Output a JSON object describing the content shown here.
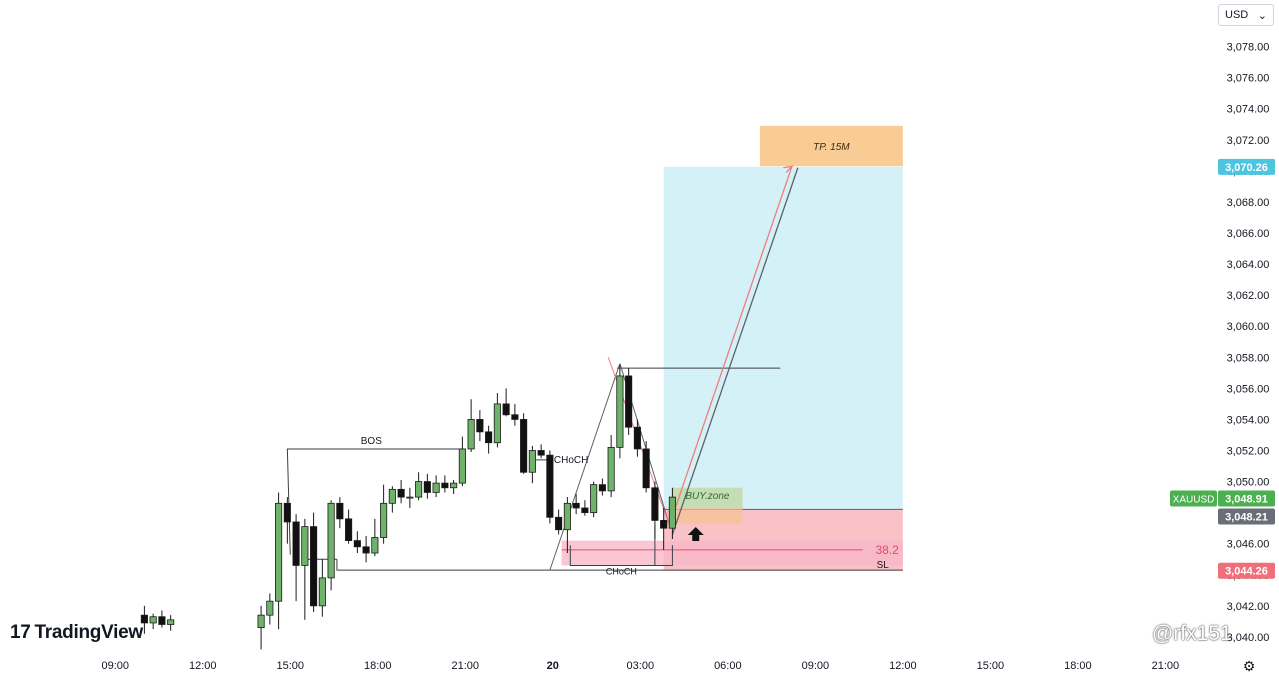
{
  "currency": {
    "label": "USD",
    "chevron_icon": "chevron-down-icon"
  },
  "brand": {
    "logo_mark": "17",
    "name": "TradingView"
  },
  "watermark": "@rfx151",
  "settings_icon": "gear-icon",
  "chart_data": {
    "type": "candlestick",
    "symbol": "XAUUSD",
    "y_axis": {
      "ticks": [
        "3,042.00",
        "3,044.00",
        "3,046.00",
        "3,048.00",
        "3,050.00",
        "3,052.00",
        "3,054.00",
        "3,056.00",
        "3,058.00",
        "3,060.00",
        "3,062.00",
        "3,064.00",
        "3,066.00",
        "3,068.00",
        "3,070.00",
        "3,072.00",
        "3,074.00",
        "3,076.00",
        "3,078.00",
        "3,040.00"
      ],
      "tick_values": [
        3042,
        3044,
        3046,
        3048,
        3050,
        3052,
        3054,
        3056,
        3058,
        3060,
        3062,
        3064,
        3066,
        3068,
        3070,
        3072,
        3074,
        3076,
        3078,
        3040
      ],
      "range": [
        3038.9,
        3081.0
      ]
    },
    "x_axis": {
      "ticks": [
        "09:00",
        "12:00",
        "15:00",
        "18:00",
        "21:00",
        "20",
        "03:00",
        "06:00",
        "09:00",
        "12:00",
        "15:00",
        "18:00",
        "21:00"
      ],
      "tick_hours": [
        9,
        12,
        15,
        18,
        21,
        24,
        27,
        30,
        33,
        36,
        39,
        42,
        45
      ],
      "range_hours": [
        5.05,
        46.7
      ]
    },
    "price_tags": {
      "target": {
        "value": "3,070.26",
        "color": "#4cc6e0"
      },
      "symbol": {
        "name": "XAUUSD",
        "value": "3,048.91",
        "color": "#4caf50"
      },
      "entry": {
        "value": "3,048.21",
        "color": "#6b6e78"
      },
      "stop": {
        "value": "3,044.26",
        "color": "#ef6f7a"
      }
    },
    "candles": [
      {
        "t": 10.0,
        "o": 3041.4,
        "h": 3042.0,
        "l": 3040.2,
        "c": 3040.9
      },
      {
        "t": 10.3,
        "o": 3040.9,
        "h": 3041.5,
        "l": 3040.5,
        "c": 3041.3
      },
      {
        "t": 10.6,
        "o": 3041.3,
        "h": 3041.7,
        "l": 3040.6,
        "c": 3040.8
      },
      {
        "t": 10.9,
        "o": 3040.8,
        "h": 3041.4,
        "l": 3040.4,
        "c": 3041.1
      },
      {
        "t": 14.0,
        "o": 3040.6,
        "h": 3042.0,
        "l": 3039.2,
        "c": 3041.4
      },
      {
        "t": 14.3,
        "o": 3041.4,
        "h": 3042.8,
        "l": 3040.8,
        "c": 3042.3
      },
      {
        "t": 14.6,
        "o": 3042.3,
        "h": 3049.3,
        "l": 3040.5,
        "c": 3048.6
      },
      {
        "t": 14.9,
        "o": 3048.6,
        "h": 3049.0,
        "l": 3046.0,
        "c": 3047.4
      },
      {
        "t": 15.2,
        "o": 3047.4,
        "h": 3047.9,
        "l": 3042.3,
        "c": 3044.6
      },
      {
        "t": 15.5,
        "o": 3044.6,
        "h": 3047.6,
        "l": 3041.1,
        "c": 3047.1
      },
      {
        "t": 15.8,
        "o": 3047.1,
        "h": 3048.0,
        "l": 3041.6,
        "c": 3042.0
      },
      {
        "t": 16.1,
        "o": 3042.0,
        "h": 3045.0,
        "l": 3041.3,
        "c": 3043.8
      },
      {
        "t": 16.4,
        "o": 3043.8,
        "h": 3048.8,
        "l": 3043.0,
        "c": 3048.6
      },
      {
        "t": 16.7,
        "o": 3048.6,
        "h": 3049.0,
        "l": 3047.0,
        "c": 3047.6
      },
      {
        "t": 17.0,
        "o": 3047.6,
        "h": 3048.2,
        "l": 3046.0,
        "c": 3046.2
      },
      {
        "t": 17.3,
        "o": 3046.2,
        "h": 3046.8,
        "l": 3045.4,
        "c": 3045.8
      },
      {
        "t": 17.6,
        "o": 3045.8,
        "h": 3046.5,
        "l": 3044.8,
        "c": 3045.4
      },
      {
        "t": 17.9,
        "o": 3045.4,
        "h": 3047.6,
        "l": 3045.2,
        "c": 3046.4
      },
      {
        "t": 18.2,
        "o": 3046.4,
        "h": 3049.8,
        "l": 3046.0,
        "c": 3048.6
      },
      {
        "t": 18.5,
        "o": 3048.6,
        "h": 3049.7,
        "l": 3048.0,
        "c": 3049.5
      },
      {
        "t": 18.8,
        "o": 3049.5,
        "h": 3050.1,
        "l": 3048.6,
        "c": 3049.0
      },
      {
        "t": 19.1,
        "o": 3049.0,
        "h": 3049.6,
        "l": 3048.3,
        "c": 3049.0
      },
      {
        "t": 19.4,
        "o": 3049.0,
        "h": 3050.6,
        "l": 3048.8,
        "c": 3050.0
      },
      {
        "t": 19.7,
        "o": 3050.0,
        "h": 3050.5,
        "l": 3048.9,
        "c": 3049.3
      },
      {
        "t": 20.0,
        "o": 3049.3,
        "h": 3050.4,
        "l": 3049.0,
        "c": 3049.9
      },
      {
        "t": 20.3,
        "o": 3049.9,
        "h": 3050.4,
        "l": 3049.3,
        "c": 3049.6
      },
      {
        "t": 20.6,
        "o": 3049.6,
        "h": 3050.1,
        "l": 3049.2,
        "c": 3049.9
      },
      {
        "t": 20.9,
        "o": 3049.9,
        "h": 3052.9,
        "l": 3049.7,
        "c": 3052.1
      },
      {
        "t": 21.2,
        "o": 3052.1,
        "h": 3055.3,
        "l": 3051.9,
        "c": 3054.0
      },
      {
        "t": 21.5,
        "o": 3054.0,
        "h": 3054.6,
        "l": 3052.6,
        "c": 3053.2
      },
      {
        "t": 21.8,
        "o": 3053.2,
        "h": 3053.6,
        "l": 3051.8,
        "c": 3052.5
      },
      {
        "t": 22.1,
        "o": 3052.5,
        "h": 3055.7,
        "l": 3052.2,
        "c": 3055.0
      },
      {
        "t": 22.4,
        "o": 3055.0,
        "h": 3056.0,
        "l": 3054.2,
        "c": 3054.3
      },
      {
        "t": 22.7,
        "o": 3054.3,
        "h": 3055.0,
        "l": 3053.6,
        "c": 3054.0
      },
      {
        "t": 23.0,
        "o": 3054.0,
        "h": 3054.4,
        "l": 3050.5,
        "c": 3050.6
      },
      {
        "t": 23.3,
        "o": 3050.6,
        "h": 3052.3,
        "l": 3049.9,
        "c": 3052.0
      },
      {
        "t": 23.6,
        "o": 3052.0,
        "h": 3052.4,
        "l": 3051.5,
        "c": 3051.7
      },
      {
        "t": 23.9,
        "o": 3051.7,
        "h": 3052.0,
        "l": 3047.3,
        "c": 3047.7
      },
      {
        "t": 24.2,
        "o": 3047.7,
        "h": 3048.2,
        "l": 3046.6,
        "c": 3046.9
      },
      {
        "t": 24.5,
        "o": 3046.9,
        "h": 3049.0,
        "l": 3045.4,
        "c": 3048.6
      },
      {
        "t": 24.8,
        "o": 3048.6,
        "h": 3049.2,
        "l": 3047.9,
        "c": 3048.3
      },
      {
        "t": 25.1,
        "o": 3048.3,
        "h": 3048.8,
        "l": 3047.8,
        "c": 3048.0
      },
      {
        "t": 25.4,
        "o": 3048.0,
        "h": 3050.0,
        "l": 3047.7,
        "c": 3049.8
      },
      {
        "t": 25.7,
        "o": 3049.8,
        "h": 3050.2,
        "l": 3049.1,
        "c": 3049.4
      },
      {
        "t": 26.0,
        "o": 3049.4,
        "h": 3053.0,
        "l": 3049.0,
        "c": 3052.2
      },
      {
        "t": 26.3,
        "o": 3052.2,
        "h": 3057.5,
        "l": 3051.5,
        "c": 3056.8
      },
      {
        "t": 26.6,
        "o": 3056.8,
        "h": 3057.3,
        "l": 3053.0,
        "c": 3053.5
      },
      {
        "t": 26.9,
        "o": 3053.5,
        "h": 3054.0,
        "l": 3051.6,
        "c": 3052.1
      },
      {
        "t": 27.2,
        "o": 3052.1,
        "h": 3052.6,
        "l": 3049.3,
        "c": 3049.6
      },
      {
        "t": 27.5,
        "o": 3049.6,
        "h": 3050.0,
        "l": 3046.3,
        "c": 3047.5
      },
      {
        "t": 27.8,
        "o": 3047.5,
        "h": 3048.3,
        "l": 3045.6,
        "c": 3047.0
      },
      {
        "t": 28.1,
        "o": 3047.0,
        "h": 3049.6,
        "l": 3046.3,
        "c": 3049.0
      }
    ],
    "annotations": {
      "labels": {
        "bos": "BOS",
        "choch_upper": "CHoCH",
        "choch_lower": "CHoCH",
        "buy_zone": "BUY.zone",
        "fib": "38.2",
        "stop_loss": "SL",
        "take_profit": "TP. 15M"
      },
      "long_position": {
        "t_start": 27.8,
        "t_end": 36.0,
        "entry": 3048.21,
        "target": 3070.26,
        "stop": 3044.26
      },
      "tp_box": {
        "t_start": 31.1,
        "t_end": 36.0,
        "top": 3072.9,
        "bottom": 3070.3
      },
      "buy_zone": {
        "t_start": 28.1,
        "t_end": 30.5,
        "top": 3049.6,
        "bottom": 3047.3
      },
      "fib_zone": {
        "t_start": 24.3,
        "t_end": 36.0,
        "top": 3046.2,
        "bottom": 3044.6,
        "level": 3045.6
      },
      "bos_line": {
        "t_start": 14.9,
        "t_end": 21.0,
        "value": 3052.1,
        "t_drop": 15.0,
        "drop_to": 3045.3
      },
      "choch_upper_line": {
        "t_start": 23.3,
        "t_end": 23.9,
        "value": 3051.4
      },
      "choch_lower_line": {
        "t_start": 24.6,
        "t_end": 28.1,
        "value": 3044.6
      },
      "sl_line": {
        "t_start": 16.6,
        "t_end": 36.0,
        "value": 3044.3
      },
      "horizontal_level": {
        "t_start": 26.2,
        "t_end": 31.8,
        "value": 3057.3
      }
    }
  }
}
